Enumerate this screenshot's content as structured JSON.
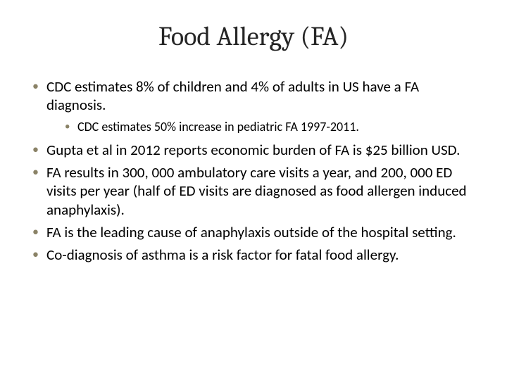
{
  "slide": {
    "title": "Food Allergy (FA)",
    "title_color": "#262626",
    "title_fontsize": 38,
    "title_font": "Cambria",
    "background_color": "#ffffff",
    "bullet_color": "#8a8266",
    "body_fontsize": 21,
    "sub_fontsize": 18,
    "body_color": "#000000",
    "bullets": {
      "b1": "CDC estimates 8% of children and 4% of adults in US have a FA diagnosis.",
      "b1a": "CDC estimates 50% increase in pediatric FA 1997-2011.",
      "b2": "Gupta et al in 2012 reports economic burden of FA is $25 billion USD.",
      "b3": "FA results in 300, 000 ambulatory care visits a year, and 200, 000 ED visits per year (half of ED visits are diagnosed as food allergen induced anaphylaxis).",
      "b4": "FA is the leading cause of anaphylaxis outside of the hospital setting.",
      "b5": "Co-diagnosis of asthma is a risk factor for fatal food allergy."
    }
  }
}
